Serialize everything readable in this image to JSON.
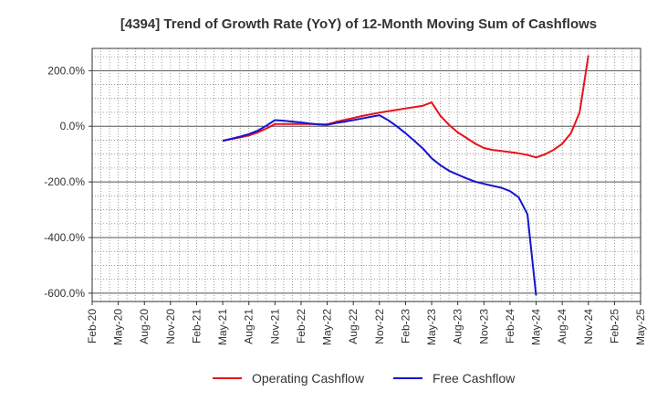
{
  "chart_data": {
    "type": "line",
    "title": "[4394]  Trend of Growth Rate (YoY) of 12-Month Moving Sum of Cashflows",
    "xlabel": "",
    "ylabel": "",
    "ylim": [
      -630,
      280
    ],
    "grid": true,
    "legend_position": "bottom",
    "x_ticks": [
      "Feb-20",
      "May-20",
      "Aug-20",
      "Nov-20",
      "Feb-21",
      "May-21",
      "Aug-21",
      "Nov-21",
      "Feb-22",
      "May-22",
      "Aug-22",
      "Nov-22",
      "Feb-23",
      "May-23",
      "Aug-23",
      "Nov-23",
      "Feb-24",
      "May-24",
      "Aug-24",
      "Nov-24",
      "Feb-25",
      "May-25"
    ],
    "y_ticks": [
      {
        "value": 200,
        "label": "200.0%"
      },
      {
        "value": 0,
        "label": "0.0%"
      },
      {
        "value": -200,
        "label": "-200.0%"
      },
      {
        "value": -400,
        "label": "-400.0%"
      },
      {
        "value": -600,
        "label": "-600.0%"
      }
    ],
    "series": [
      {
        "name": "Operating Cashflow",
        "color": "#e8121b",
        "points": [
          [
            "May-21",
            -52
          ],
          [
            "Jun-21",
            -46
          ],
          [
            "Jul-21",
            -40
          ],
          [
            "Aug-21",
            -33
          ],
          [
            "Sep-21",
            -22
          ],
          [
            "Oct-21",
            -8
          ],
          [
            "Nov-21",
            8
          ],
          [
            "Dec-21",
            8
          ],
          [
            "Jan-22",
            8
          ],
          [
            "Feb-22",
            8
          ],
          [
            "Mar-22",
            8
          ],
          [
            "Apr-22",
            7
          ],
          [
            "May-22",
            7
          ],
          [
            "Jun-22",
            16
          ],
          [
            "Jul-22",
            23
          ],
          [
            "Aug-22",
            30
          ],
          [
            "Sep-22",
            37
          ],
          [
            "Oct-22",
            43
          ],
          [
            "Nov-22",
            49
          ],
          [
            "Dec-22",
            54
          ],
          [
            "Jan-23",
            59
          ],
          [
            "Feb-23",
            64
          ],
          [
            "Mar-23",
            69
          ],
          [
            "Apr-23",
            74
          ],
          [
            "May-23",
            86
          ],
          [
            "Jun-23",
            38
          ],
          [
            "Jul-23",
            5
          ],
          [
            "Aug-23",
            -22
          ],
          [
            "Sep-23",
            -42
          ],
          [
            "Oct-23",
            -62
          ],
          [
            "Nov-23",
            -78
          ],
          [
            "Dec-23",
            -85
          ],
          [
            "Jan-24",
            -89
          ],
          [
            "Feb-24",
            -93
          ],
          [
            "Mar-24",
            -97
          ],
          [
            "Apr-24",
            -103
          ],
          [
            "May-24",
            -112
          ],
          [
            "Jun-24",
            -101
          ],
          [
            "Jul-24",
            -85
          ],
          [
            "Aug-24",
            -63
          ],
          [
            "Sep-24",
            -25
          ],
          [
            "Oct-24",
            50
          ],
          [
            "Nov-24",
            255
          ]
        ]
      },
      {
        "name": "Free Cashflow",
        "color": "#1414d2",
        "points": [
          [
            "May-21",
            -52
          ],
          [
            "Jun-21",
            -45
          ],
          [
            "Jul-21",
            -37
          ],
          [
            "Aug-21",
            -28
          ],
          [
            "Sep-21",
            -16
          ],
          [
            "Oct-21",
            2
          ],
          [
            "Nov-21",
            22
          ],
          [
            "Dec-21",
            20
          ],
          [
            "Jan-22",
            17
          ],
          [
            "Feb-22",
            14
          ],
          [
            "Mar-22",
            10
          ],
          [
            "Apr-22",
            7
          ],
          [
            "May-22",
            5
          ],
          [
            "Jun-22",
            12
          ],
          [
            "Jul-22",
            17
          ],
          [
            "Aug-22",
            22
          ],
          [
            "Sep-22",
            28
          ],
          [
            "Oct-22",
            34
          ],
          [
            "Nov-22",
            40
          ],
          [
            "Dec-22",
            22
          ],
          [
            "Jan-23",
            0
          ],
          [
            "Feb-23",
            -25
          ],
          [
            "Mar-23",
            -52
          ],
          [
            "Apr-23",
            -80
          ],
          [
            "May-23",
            -115
          ],
          [
            "Jun-23",
            -140
          ],
          [
            "Jul-23",
            -160
          ],
          [
            "Aug-23",
            -174
          ],
          [
            "Sep-23",
            -187
          ],
          [
            "Oct-23",
            -199
          ],
          [
            "Nov-23",
            -207
          ],
          [
            "Dec-23",
            -214
          ],
          [
            "Jan-24",
            -221
          ],
          [
            "Feb-24",
            -233
          ],
          [
            "Mar-24",
            -255
          ],
          [
            "Apr-24",
            -316
          ],
          [
            "May-24",
            -608
          ]
        ]
      }
    ]
  }
}
